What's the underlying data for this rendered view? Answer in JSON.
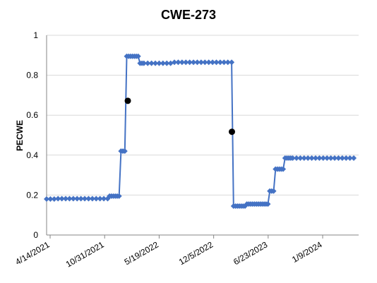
{
  "chart_data": {
    "type": "line",
    "title": "CWE-273",
    "xlabel": "",
    "ylabel": "PECWE",
    "ylim": [
      0,
      1
    ],
    "yticks": [
      "0",
      "0.2",
      "0.4",
      "0.6",
      "0.8",
      "1"
    ],
    "xlim": [
      "2021-04-01",
      "2024-05-20"
    ],
    "xticks": [
      "4/14/2021",
      "10/31/2021",
      "5/19/2022",
      "12/5/2022",
      "6/23/2023",
      "1/9/2024"
    ],
    "xtick_dates": [
      "2021-04-14",
      "2021-10-31",
      "2022-05-19",
      "2022-12-05",
      "2023-06-23",
      "2024-01-09"
    ],
    "grid": true,
    "line_color": "#4472C4",
    "marker_color": "#000000",
    "series": [
      {
        "x": [
          "2021-04-01",
          "2021-04-15",
          "2021-04-29",
          "2021-05-13",
          "2021-05-27",
          "2021-06-10",
          "2021-06-24",
          "2021-07-08",
          "2021-07-22",
          "2021-08-05",
          "2021-08-19",
          "2021-09-02",
          "2021-09-16",
          "2021-09-30",
          "2021-10-14",
          "2021-10-28",
          "2021-11-11",
          "2021-11-18",
          "2021-11-25",
          "2021-12-02",
          "2021-12-09",
          "2021-12-16",
          "2021-12-23",
          "2021-12-30",
          "2022-01-06",
          "2022-01-13",
          "2022-01-20",
          "2022-01-27",
          "2022-02-03",
          "2022-02-10",
          "2022-02-17",
          "2022-02-24",
          "2022-03-03",
          "2022-03-10",
          "2022-03-17",
          "2022-03-24",
          "2022-04-07",
          "2022-04-21",
          "2022-05-05",
          "2022-05-19",
          "2022-06-02",
          "2022-06-16",
          "2022-06-30",
          "2022-07-14",
          "2022-07-28",
          "2022-08-11",
          "2022-08-25",
          "2022-09-08",
          "2022-09-22",
          "2022-10-06",
          "2022-10-20",
          "2022-11-03",
          "2022-11-17",
          "2022-12-01",
          "2022-12-15",
          "2022-12-29",
          "2023-01-12",
          "2023-01-26",
          "2023-02-09",
          "2023-02-16",
          "2023-02-23",
          "2023-03-02",
          "2023-03-09",
          "2023-03-16",
          "2023-03-23",
          "2023-03-30",
          "2023-04-06",
          "2023-04-13",
          "2023-04-20",
          "2023-04-27",
          "2023-05-04",
          "2023-05-11",
          "2023-05-18",
          "2023-05-25",
          "2023-06-01",
          "2023-06-08",
          "2023-06-15",
          "2023-06-22",
          "2023-06-29",
          "2023-07-06",
          "2023-07-13",
          "2023-07-20",
          "2023-07-27",
          "2023-08-03",
          "2023-08-10",
          "2023-08-17",
          "2023-08-24",
          "2023-08-31",
          "2023-09-07",
          "2023-09-14",
          "2023-09-21",
          "2023-10-05",
          "2023-10-19",
          "2023-11-02",
          "2023-11-16",
          "2023-11-30",
          "2023-12-14",
          "2023-12-28",
          "2024-01-11",
          "2024-01-25",
          "2024-02-08",
          "2024-02-22",
          "2024-03-07",
          "2024-03-21",
          "2024-04-04",
          "2024-04-18",
          "2024-05-02"
        ],
        "values": [
          0.18,
          0.18,
          0.18,
          0.182,
          0.182,
          0.182,
          0.182,
          0.182,
          0.182,
          0.182,
          0.182,
          0.182,
          0.182,
          0.182,
          0.182,
          0.182,
          0.182,
          0.195,
          0.195,
          0.195,
          0.195,
          0.195,
          0.195,
          0.42,
          0.42,
          0.42,
          0.895,
          0.895,
          0.895,
          0.895,
          0.895,
          0.895,
          0.895,
          0.86,
          0.86,
          0.86,
          0.86,
          0.86,
          0.86,
          0.86,
          0.86,
          0.86,
          0.86,
          0.865,
          0.865,
          0.865,
          0.865,
          0.865,
          0.865,
          0.865,
          0.865,
          0.865,
          0.865,
          0.865,
          0.865,
          0.865,
          0.865,
          0.865,
          0.865,
          0.145,
          0.145,
          0.145,
          0.145,
          0.145,
          0.145,
          0.145,
          0.155,
          0.155,
          0.155,
          0.155,
          0.155,
          0.155,
          0.155,
          0.155,
          0.155,
          0.155,
          0.155,
          0.155,
          0.22,
          0.22,
          0.22,
          0.33,
          0.33,
          0.33,
          0.33,
          0.33,
          0.385,
          0.385,
          0.385,
          0.385,
          0.385,
          0.385,
          0.385,
          0.385,
          0.385,
          0.385,
          0.385,
          0.385,
          0.385,
          0.385,
          0.385,
          0.385,
          0.385,
          0.385,
          0.385,
          0.385,
          0.385
        ]
      }
    ],
    "highlight_points": [
      {
        "x": "2022-01-24",
        "y": 0.672
      },
      {
        "x": "2023-02-10",
        "y": 0.517
      }
    ]
  }
}
